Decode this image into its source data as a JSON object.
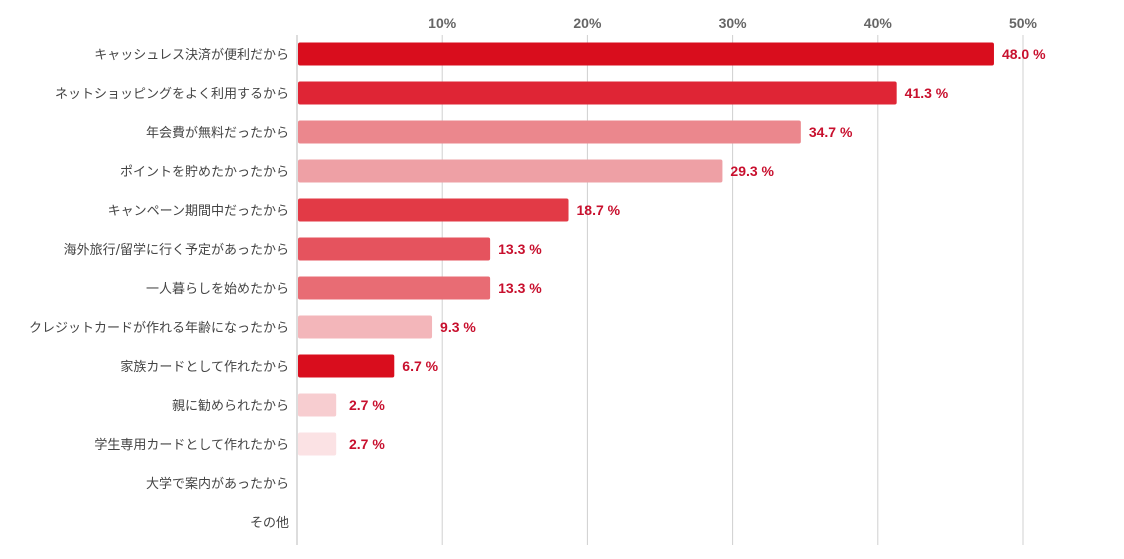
{
  "chart_data": {
    "type": "bar",
    "orientation": "horizontal",
    "title": "",
    "xlabel": "",
    "ylabel": "",
    "xlim": [
      0,
      55
    ],
    "ticks": [
      {
        "value": 10,
        "label": "10%"
      },
      {
        "value": 20,
        "label": "20%"
      },
      {
        "value": 30,
        "label": "30%"
      },
      {
        "value": 40,
        "label": "40%"
      },
      {
        "value": 50,
        "label": "50%"
      }
    ],
    "grid": true,
    "bars": [
      {
        "category": "キャッシュレス決済が便利だから",
        "value": 48.0,
        "label": "48.0 %",
        "color": "#d90d1d"
      },
      {
        "category": "ネットショッピングをよく利用するから",
        "value": 41.3,
        "label": "41.3 %",
        "color": "#df2535"
      },
      {
        "category": "年会費が無料だったから",
        "value": 34.7,
        "label": "34.7 %",
        "color": "#eb878d"
      },
      {
        "category": "ポイントを貯めたかったから",
        "value": 29.3,
        "label": "29.3 %",
        "color": "#eea0a5"
      },
      {
        "category": "キャンペーン期間中だったから",
        "value": 18.7,
        "label": "18.7 %",
        "color": "#e23a46"
      },
      {
        "category": "海外旅行/留学に行く予定があったから",
        "value": 13.3,
        "label": "13.3 %",
        "color": "#e5535e"
      },
      {
        "category": "一人暮らしを始めたから",
        "value": 13.3,
        "label": "13.3 %",
        "color": "#e86c74"
      },
      {
        "category": "クレジットカードが作れる年齢になったから",
        "value": 9.3,
        "label": "9.3 %",
        "color": "#f3b6ba"
      },
      {
        "category": "家族カードとして作れたから",
        "value": 6.7,
        "label": "6.7 %",
        "color": "#d90d1d"
      },
      {
        "category": "親に勧められたから",
        "value": 2.7,
        "label": "2.7 %",
        "color": "#f7cdd0"
      },
      {
        "category": "学生専用カードとして作れたから",
        "value": 2.7,
        "label": "2.7 %",
        "color": "#fbe2e4"
      },
      {
        "category": "大学で案内があったから",
        "value": null,
        "label": null,
        "color": "#d90d1d"
      },
      {
        "category": "その他",
        "value": null,
        "label": null,
        "color": "#d90d1d"
      }
    ]
  }
}
